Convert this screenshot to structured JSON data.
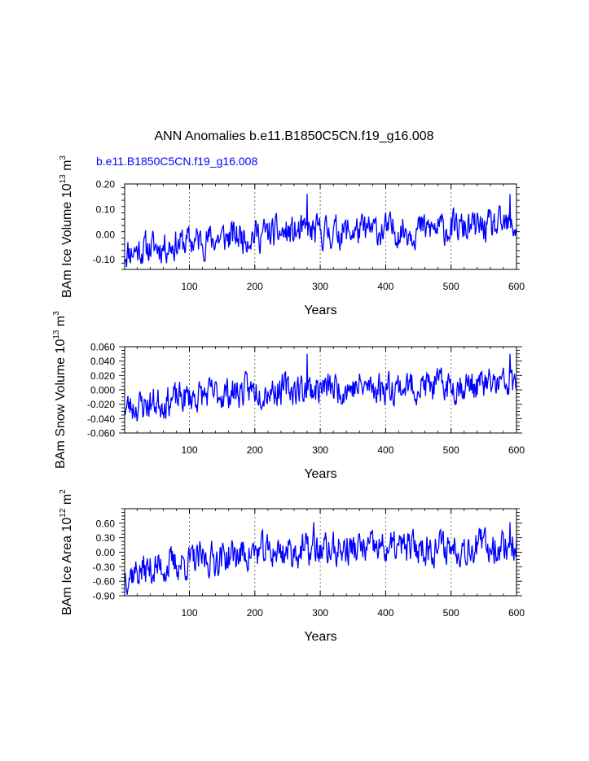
{
  "figure": {
    "title": "ANN Anomalies b.e11.B1850C5CN.f19_g16.008",
    "case_label": "b.e11.B1850C5CN.f19_g16.008",
    "case_color": "#0000ff",
    "line_color": "#0000ff"
  },
  "chart_data": [
    {
      "type": "line",
      "name": "ice-volume",
      "ylabel_main": "BAm Ice Volume 10",
      "ylabel_exp": "13",
      "ylabel_unit": " m",
      "ylabel_unit_exp": "3",
      "xlabel": "Years",
      "xlim": [
        1,
        600
      ],
      "ylim": [
        -0.14,
        0.2
      ],
      "x_ticks": [
        100,
        200,
        300,
        400,
        500,
        600
      ],
      "x_tick_labels": [
        "100",
        "200",
        "300",
        "400",
        "500",
        "600"
      ],
      "y_ticks": [
        -0.1,
        0.0,
        0.1,
        0.2
      ],
      "y_tick_labels": [
        "-0.10",
        "0.00",
        "0.10",
        "0.20"
      ],
      "grid": "dashed vertical at 100-year marks",
      "series": [
        {
          "name": "b.e11.B1850C5CN.f19_g16.008",
          "start_year": 1,
          "trend": [
            [
              0,
              -0.07
            ],
            [
              100,
              -0.03
            ],
            [
              200,
              0.0
            ],
            [
              600,
              0.03
            ]
          ],
          "noise": 0.055,
          "spike_years": [
            280,
            590
          ],
          "spike_value": 0.16,
          "seed": 11
        }
      ]
    },
    {
      "type": "line",
      "name": "snow-volume",
      "ylabel_main": "BAm Snow Volume 10",
      "ylabel_exp": "13",
      "ylabel_unit": " m",
      "ylabel_unit_exp": "3",
      "xlabel": "Years",
      "xlim": [
        1,
        600
      ],
      "ylim": [
        -0.06,
        0.06
      ],
      "x_ticks": [
        100,
        200,
        300,
        400,
        500,
        600
      ],
      "x_tick_labels": [
        "100",
        "200",
        "300",
        "400",
        "500",
        "600"
      ],
      "y_ticks": [
        -0.06,
        -0.04,
        -0.02,
        0.0,
        0.02,
        0.04,
        0.06
      ],
      "y_tick_labels": [
        "-0.060",
        "-0.040",
        "-0.020",
        "0.000",
        "0.020",
        "0.040",
        "0.060"
      ],
      "grid": "dashed vertical at 100-year marks",
      "series": [
        {
          "name": "b.e11.B1850C5CN.f19_g16.008",
          "start_year": 1,
          "trend": [
            [
              0,
              -0.025
            ],
            [
              100,
              -0.01
            ],
            [
              200,
              0.0
            ],
            [
              600,
              0.008
            ]
          ],
          "noise": 0.019,
          "spike_years": [
            280,
            590
          ],
          "spike_value": 0.05,
          "seed": 23
        }
      ]
    },
    {
      "type": "line",
      "name": "ice-area",
      "ylabel_main": "BAm Ice Area 10",
      "ylabel_exp": "12",
      "ylabel_unit": " m",
      "ylabel_unit_exp": "2",
      "xlabel": "Years",
      "xlim": [
        1,
        600
      ],
      "ylim": [
        -0.9,
        0.9
      ],
      "x_ticks": [
        100,
        200,
        300,
        400,
        500,
        600
      ],
      "x_tick_labels": [
        "100",
        "200",
        "300",
        "400",
        "500",
        "600"
      ],
      "y_ticks": [
        -0.9,
        -0.6,
        -0.3,
        0.0,
        0.3,
        0.6
      ],
      "y_tick_labels": [
        "-0.90",
        "-0.60",
        "-0.30",
        "0.00",
        "0.30",
        "0.60"
      ],
      "grid": "dashed vertical at 100-year marks",
      "series": [
        {
          "name": "b.e11.B1850C5CN.f19_g16.008",
          "start_year": 1,
          "trend": [
            [
              0,
              -0.45
            ],
            [
              100,
              -0.2
            ],
            [
              200,
              0.0
            ],
            [
              600,
              0.15
            ]
          ],
          "noise": 0.3,
          "spike_years": [
            290,
            590
          ],
          "spike_value": 0.62,
          "seed": 37
        }
      ]
    }
  ]
}
